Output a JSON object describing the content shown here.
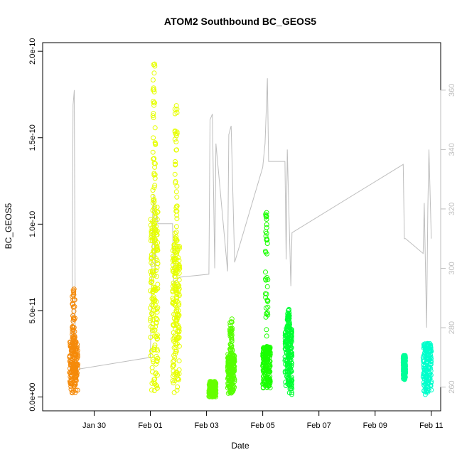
{
  "chart_data": {
    "type": "scatter",
    "title": "ATOM2 Southbound BC_GEOS5",
    "xlabel": "Date",
    "ylabel": "BC_GEOS5",
    "x_unit": "date",
    "xlim": [
      "2017-01-28T04:00",
      "2017-02-11T08:00"
    ],
    "ylim": [
      -8e-12,
      2.05e-10
    ],
    "y2lim": [
      252,
      376
    ],
    "x_ticks": [
      {
        "date": "2017-01-30",
        "label": "Jan 30"
      },
      {
        "date": "2017-02-01",
        "label": "Feb 01"
      },
      {
        "date": "2017-02-03",
        "label": "Feb 03"
      },
      {
        "date": "2017-02-05",
        "label": "Feb 05"
      },
      {
        "date": "2017-02-07",
        "label": "Feb 07"
      },
      {
        "date": "2017-02-09",
        "label": "Feb 09"
      },
      {
        "date": "2017-02-11",
        "label": "Feb 11"
      }
    ],
    "y_ticks": [
      {
        "value": 0,
        "label": "0.0e+00"
      },
      {
        "value": 5e-11,
        "label": "5.0e-11"
      },
      {
        "value": 1e-10,
        "label": "1.0e-10"
      },
      {
        "value": 1.5e-10,
        "label": "1.5e-10"
      },
      {
        "value": 2e-10,
        "label": "2.0e-10"
      }
    ],
    "y2_ticks": [
      {
        "value": 260,
        "label": "260"
      },
      {
        "value": 280,
        "label": "280"
      },
      {
        "value": 300,
        "label": "300"
      },
      {
        "value": 320,
        "label": "320"
      },
      {
        "value": 340,
        "label": "340"
      },
      {
        "value": 360,
        "label": "360"
      }
    ],
    "grid": false,
    "legend": "none",
    "segments": [
      {
        "color": "#f58a0a",
        "start": "2017-01-29T03:00",
        "end": "2017-01-29T10:00",
        "base": 2e-12,
        "core_top": 3.2e-11,
        "sparse_top": 6.3e-11
      },
      {
        "color": "#e6ff00",
        "start": "2017-02-01T00:00",
        "end": "2017-02-01T06:30",
        "base": 2e-12,
        "core_top": 1.1e-10,
        "sparse_top": 2.02e-10
      },
      {
        "color": "#e6ff00",
        "start": "2017-02-01T19:00",
        "end": "2017-02-02T01:00",
        "base": 2e-12,
        "core_top": 9e-11,
        "sparse_top": 1.71e-10
      },
      {
        "color": "#66ff00",
        "start": "2017-02-03T02:00",
        "end": "2017-02-03T08:00",
        "base": 0.0,
        "core_top": 9e-12,
        "sparse_top": 9e-12
      },
      {
        "color": "#55ff00",
        "start": "2017-02-03T18:00",
        "end": "2017-02-04T00:00",
        "base": 2e-12,
        "core_top": 2.5e-11,
        "sparse_top": 4.6e-11
      },
      {
        "color": "#1aff00",
        "start": "2017-02-05T00:00",
        "end": "2017-02-05T06:30",
        "base": 5e-12,
        "core_top": 2.9e-11,
        "sparse_top": 1.07e-10
      },
      {
        "color": "#00ff33",
        "start": "2017-02-05T19:00",
        "end": "2017-02-06T01:00",
        "base": 1e-12,
        "core_top": 4e-11,
        "sparse_top": 5.1e-11
      },
      {
        "color": "#00ff99",
        "start": "2017-02-10T00:00",
        "end": "2017-02-10T02:00",
        "base": 1e-11,
        "core_top": 2.4e-11,
        "sparse_top": 2.4e-11
      },
      {
        "color": "#00ffcc",
        "start": "2017-02-10T17:00",
        "end": "2017-02-11T00:00",
        "base": 1e-12,
        "core_top": 3.1e-11,
        "sparse_top": 3.1e-11
      }
    ],
    "gray_line_color": "#bebebe",
    "gray_line": [
      [
        "2017-01-29T03:00",
        263
      ],
      [
        "2017-01-29T05:00",
        280
      ],
      [
        "2017-01-29T06:00",
        355
      ],
      [
        "2017-01-29T07:00",
        360
      ],
      [
        "2017-01-29T08:00",
        268
      ],
      [
        "2017-01-29T10:00",
        266
      ],
      [
        "2017-02-01T00:00",
        270
      ],
      [
        "2017-02-01T01:00",
        290
      ],
      [
        "2017-02-01T02:00",
        318
      ],
      [
        "2017-02-01T03:00",
        325
      ],
      [
        "2017-02-01T04:00",
        297
      ],
      [
        "2017-02-01T05:00",
        318
      ],
      [
        "2017-02-01T06:30",
        315
      ],
      [
        "2017-02-01T19:00",
        315
      ],
      [
        "2017-02-01T20:00",
        295
      ],
      [
        "2017-02-02T01:00",
        297
      ],
      [
        "2017-02-03T02:00",
        298
      ],
      [
        "2017-02-03T03:00",
        350
      ],
      [
        "2017-02-03T05:00",
        352
      ],
      [
        "2017-02-03T07:00",
        300
      ],
      [
        "2017-02-03T08:00",
        342
      ],
      [
        "2017-02-03T18:00",
        299
      ],
      [
        "2017-02-03T19:00",
        345
      ],
      [
        "2017-02-03T21:00",
        348
      ],
      [
        "2017-02-04T00:00",
        302
      ],
      [
        "2017-02-05T00:00",
        334
      ],
      [
        "2017-02-05T02:00",
        342
      ],
      [
        "2017-02-05T04:00",
        364
      ],
      [
        "2017-02-05T05:00",
        336
      ],
      [
        "2017-02-05T06:30",
        336
      ],
      [
        "2017-02-05T19:00",
        336
      ],
      [
        "2017-02-05T20:00",
        303
      ],
      [
        "2017-02-05T21:00",
        340
      ],
      [
        "2017-02-06T00:00",
        294
      ],
      [
        "2017-02-06T01:00",
        312
      ],
      [
        "2017-02-10T00:00",
        335
      ],
      [
        "2017-02-10T01:00",
        310
      ],
      [
        "2017-02-10T02:00",
        310
      ],
      [
        "2017-02-10T17:00",
        305
      ],
      [
        "2017-02-10T18:00",
        322
      ],
      [
        "2017-02-10T20:00",
        280
      ],
      [
        "2017-02-10T21:00",
        320
      ],
      [
        "2017-02-10T22:00",
        340
      ],
      [
        "2017-02-11T00:00",
        310
      ]
    ]
  }
}
